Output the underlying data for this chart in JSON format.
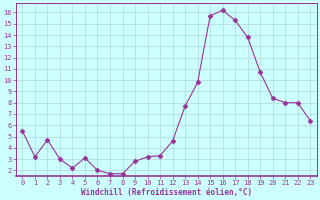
{
  "x": [
    0,
    1,
    2,
    3,
    4,
    5,
    6,
    7,
    8,
    9,
    10,
    11,
    12,
    13,
    14,
    15,
    16,
    17,
    18,
    19,
    20,
    21,
    22,
    23
  ],
  "y": [
    5.5,
    3.2,
    4.7,
    3.0,
    2.2,
    3.1,
    2.0,
    1.7,
    1.7,
    2.8,
    3.2,
    3.3,
    4.6,
    7.7,
    9.8,
    15.7,
    16.2,
    15.3,
    13.8,
    10.7,
    8.4,
    8.0,
    8.0,
    6.4
  ],
  "line_color": "#993399",
  "marker": "D",
  "marker_size": 2.5,
  "bg_color": "#ccffff",
  "grid_color": "#b0d8d8",
  "xlabel": "Windchill (Refroidissement éolien,°C)",
  "xlabel_color": "#993399",
  "tick_color": "#993399",
  "spine_color": "#993399",
  "ylim": [
    1.5,
    16.8
  ],
  "xlim": [
    -0.5,
    23.5
  ],
  "yticks": [
    2,
    3,
    4,
    5,
    6,
    7,
    8,
    9,
    10,
    11,
    12,
    13,
    14,
    15,
    16
  ],
  "xticks": [
    0,
    1,
    2,
    3,
    4,
    5,
    6,
    7,
    8,
    9,
    10,
    11,
    12,
    13,
    14,
    15,
    16,
    17,
    18,
    19,
    20,
    21,
    22,
    23
  ],
  "tick_fontsize": 5,
  "xlabel_fontsize": 5.5
}
